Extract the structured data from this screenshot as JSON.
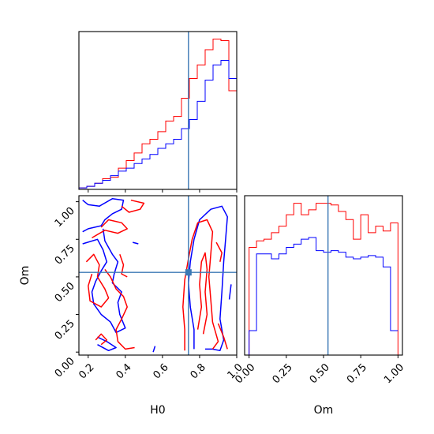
{
  "chart_data": {
    "type": "corner",
    "parameters": [
      "H0",
      "Om"
    ],
    "truth": {
      "H0": 0.74,
      "Om": 0.53
    },
    "colors": {
      "series_a": "#ff0000",
      "series_b": "#0000ff",
      "truth": "#3b78b4"
    },
    "panels": [
      {
        "kind": "histogram",
        "parameter": "H0",
        "xlim": [
          0.15,
          1.0
        ],
        "bins": [
          0.15,
          0.1925,
          0.235,
          0.2775,
          0.32,
          0.3625,
          0.405,
          0.4475,
          0.49,
          0.5325,
          0.575,
          0.6175,
          0.66,
          0.7025,
          0.745,
          0.7875,
          0.83,
          0.8725,
          0.915,
          0.9575,
          1.0
        ],
        "series": [
          {
            "color": "#ff0000",
            "counts": [
              1,
              2,
              4,
              7,
              8,
              14,
              19,
              24,
              30,
              33,
              38,
              45,
              48,
              60,
              73,
              82,
              92,
              99,
              98,
              65,
              24
            ]
          },
          {
            "color": "#0000ff",
            "counts": [
              1,
              2,
              4,
              6,
              9,
              12,
              14,
              17,
              20,
              23,
              27,
              30,
              33,
              40,
              46,
              58,
              72,
              82,
              85,
              73,
              13
            ]
          }
        ]
      },
      {
        "kind": "contour",
        "x": "H0",
        "y": "Om",
        "xlim": [
          0.15,
          1.0
        ],
        "ylim": [
          -0.02,
          1.04
        ],
        "xticks": [
          "0.2",
          "0.4",
          "0.6",
          "0.8",
          "1.0"
        ],
        "yticks": [
          "0.00",
          "0.25",
          "0.50",
          "0.75",
          "1.00"
        ],
        "xlabel": "H0",
        "ylabel": "Om",
        "contours": [
          {
            "color": "#0000ff",
            "points": [
              [
                0.17,
                1.01
              ],
              [
                0.2,
                0.98
              ],
              [
                0.26,
                0.97
              ],
              [
                0.33,
                1.02
              ],
              [
                0.39,
                1.01
              ],
              [
                0.38,
                0.95
              ],
              [
                0.33,
                0.92
              ],
              [
                0.29,
                0.88
              ],
              [
                0.27,
                0.84
              ],
              [
                0.2,
                0.82
              ],
              [
                0.17,
                0.8
              ]
            ]
          },
          {
            "color": "#0000ff",
            "points": [
              [
                0.17,
                0.72
              ],
              [
                0.25,
                0.75
              ],
              [
                0.28,
                0.68
              ],
              [
                0.3,
                0.6
              ],
              [
                0.27,
                0.54
              ],
              [
                0.24,
                0.47
              ],
              [
                0.22,
                0.4
              ],
              [
                0.23,
                0.32
              ],
              [
                0.27,
                0.25
              ],
              [
                0.32,
                0.2
              ],
              [
                0.35,
                0.13
              ],
              [
                0.4,
                0.16
              ],
              [
                0.37,
                0.25
              ],
              [
                0.36,
                0.33
              ],
              [
                0.38,
                0.4
              ],
              [
                0.33,
                0.46
              ],
              [
                0.34,
                0.52
              ],
              [
                0.36,
                0.6
              ],
              [
                0.33,
                0.65
              ],
              [
                0.29,
                0.74
              ],
              [
                0.28,
                0.82
              ]
            ]
          },
          {
            "color": "#0000ff",
            "points": [
              [
                0.25,
                0.1
              ],
              [
                0.3,
                0.07
              ],
              [
                0.35,
                0.03
              ],
              [
                0.31,
                0.01
              ],
              [
                0.25,
                0.05
              ]
            ]
          },
          {
            "color": "#0000ff",
            "points": [
              [
                0.77,
                0.02
              ],
              [
                0.77,
                0.15
              ],
              [
                0.75,
                0.3
              ],
              [
                0.74,
                0.46
              ],
              [
                0.75,
                0.6
              ],
              [
                0.77,
                0.75
              ],
              [
                0.8,
                0.88
              ],
              [
                0.86,
                0.95
              ],
              [
                0.92,
                0.97
              ],
              [
                0.95,
                0.9
              ],
              [
                0.94,
                0.75
              ],
              [
                0.93,
                0.6
              ],
              [
                0.92,
                0.4
              ],
              [
                0.91,
                0.22
              ],
              [
                0.93,
                0.08
              ],
              [
                0.91,
                0.01
              ],
              [
                0.87,
                0.02
              ],
              [
                0.83,
                0.02
              ]
            ]
          },
          {
            "color": "#0000ff",
            "points": [
              [
                0.56,
                0.04
              ],
              [
                0.55,
                0.0
              ]
            ]
          },
          {
            "color": "#0000ff",
            "points": [
              [
                0.44,
                0.73
              ],
              [
                0.47,
                0.72
              ]
            ]
          },
          {
            "color": "#0000ff",
            "points": [
              [
                0.96,
                0.35
              ],
              [
                0.97,
                0.45
              ]
            ]
          },
          {
            "color": "#ff0000",
            "points": [
              [
                0.22,
                0.76
              ],
              [
                0.29,
                0.81
              ],
              [
                0.36,
                0.79
              ],
              [
                0.41,
                0.82
              ],
              [
                0.38,
                0.86
              ],
              [
                0.31,
                0.88
              ],
              [
                0.27,
                0.83
              ]
            ]
          },
          {
            "color": "#ff0000",
            "points": [
              [
                0.38,
                0.97
              ],
              [
                0.42,
                0.93
              ],
              [
                0.48,
                0.95
              ],
              [
                0.5,
                0.99
              ],
              [
                0.43,
                1.01
              ]
            ]
          },
          {
            "color": "#ff0000",
            "points": [
              [
                0.19,
                0.6
              ],
              [
                0.23,
                0.65
              ],
              [
                0.26,
                0.58
              ],
              [
                0.25,
                0.5
              ],
              [
                0.29,
                0.42
              ],
              [
                0.31,
                0.36
              ],
              [
                0.27,
                0.3
              ],
              [
                0.21,
                0.34
              ],
              [
                0.2,
                0.44
              ],
              [
                0.22,
                0.52
              ]
            ]
          },
          {
            "color": "#ff0000",
            "points": [
              [
                0.29,
                0.55
              ],
              [
                0.32,
                0.5
              ],
              [
                0.35,
                0.42
              ],
              [
                0.39,
                0.37
              ],
              [
                0.41,
                0.3
              ],
              [
                0.38,
                0.22
              ],
              [
                0.35,
                0.15
              ],
              [
                0.36,
                0.07
              ],
              [
                0.4,
                0.02
              ],
              [
                0.45,
                0.03
              ]
            ]
          },
          {
            "color": "#ff0000",
            "points": [
              [
                0.37,
                0.65
              ],
              [
                0.39,
                0.58
              ],
              [
                0.38,
                0.52
              ],
              [
                0.41,
                0.5
              ]
            ]
          },
          {
            "color": "#ff0000",
            "points": [
              [
                0.24,
                0.08
              ],
              [
                0.27,
                0.12
              ],
              [
                0.3,
                0.08
              ],
              [
                0.27,
                0.05
              ]
            ]
          },
          {
            "color": "#ff0000",
            "points": [
              [
                0.72,
                0.01
              ],
              [
                0.72,
                0.15
              ],
              [
                0.71,
                0.3
              ],
              [
                0.72,
                0.48
              ],
              [
                0.74,
                0.62
              ],
              [
                0.76,
                0.75
              ],
              [
                0.79,
                0.86
              ],
              [
                0.84,
                0.88
              ],
              [
                0.87,
                0.8
              ],
              [
                0.86,
                0.65
              ],
              [
                0.85,
                0.5
              ],
              [
                0.86,
                0.35
              ],
              [
                0.87,
                0.2
              ],
              [
                0.9,
                0.07
              ],
              [
                0.87,
                0.02
              ]
            ]
          },
          {
            "color": "#ff0000",
            "points": [
              [
                0.79,
                0.15
              ],
              [
                0.81,
                0.3
              ],
              [
                0.8,
                0.45
              ],
              [
                0.81,
                0.6
              ],
              [
                0.83,
                0.66
              ],
              [
                0.84,
                0.55
              ],
              [
                0.83,
                0.4
              ],
              [
                0.84,
                0.25
              ],
              [
                0.82,
                0.12
              ]
            ]
          },
          {
            "color": "#ff0000",
            "points": [
              [
                0.89,
                0.73
              ],
              [
                0.92,
                0.66
              ],
              [
                0.91,
                0.6
              ]
            ]
          },
          {
            "color": "#ff0000",
            "points": [
              [
                0.9,
                0.19
              ],
              [
                0.93,
                0.1
              ],
              [
                0.95,
                0.02
              ]
            ]
          }
        ]
      },
      {
        "kind": "histogram",
        "parameter": "Om",
        "xlim": [
          -0.03,
          1.03
        ],
        "xticks": [
          "0.00",
          "0.25",
          "0.50",
          "0.75",
          "1.00"
        ],
        "xlabel": "Om",
        "bins": [
          0.0,
          0.05,
          0.1,
          0.15,
          0.2,
          0.25,
          0.3,
          0.35,
          0.4,
          0.45,
          0.5,
          0.55,
          0.6,
          0.65,
          0.7,
          0.75,
          0.8,
          0.85,
          0.9,
          0.95,
          1.0
        ],
        "series": [
          {
            "color": "#ff0000",
            "counts": [
              66,
              70,
              71,
              75,
              79,
              86,
              93,
              86,
              89,
              93,
              93,
              92,
              88,
              83,
              71,
              86,
              75,
              79,
              76,
              81,
              0
            ]
          },
          {
            "color": "#0000ff",
            "counts": [
              15,
              62,
              62,
              59,
              62,
              66,
              68,
              71,
              72,
              64,
              63,
              64,
              63,
              60,
              59,
              60,
              61,
              60,
              54,
              15,
              15
            ]
          }
        ]
      }
    ]
  }
}
